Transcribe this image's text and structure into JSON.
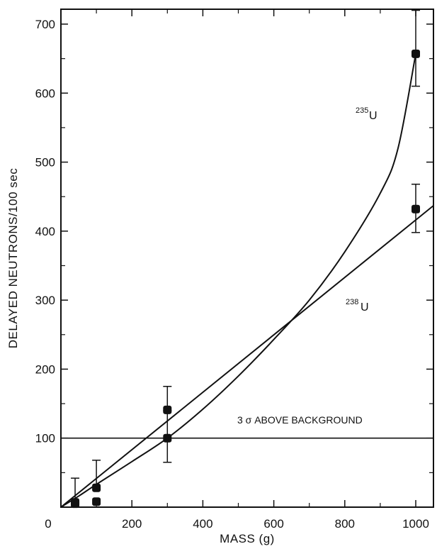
{
  "chart_data": {
    "type": "scatter",
    "xlabel": "MASS (g)",
    "ylabel": "DELAYED NEUTRONS/100 sec",
    "xlim": [
      0,
      1050
    ],
    "ylim": [
      0,
      720
    ],
    "x_ticks": [
      0,
      200,
      400,
      600,
      800,
      1000
    ],
    "y_ticks": [
      100,
      200,
      300,
      400,
      500,
      600,
      700
    ],
    "x_tick_labels": [
      "0",
      "200",
      "400",
      "600",
      "800",
      "1000"
    ],
    "y_tick_labels": [
      "100",
      "200",
      "300",
      "400",
      "500",
      "600",
      "700"
    ],
    "grid": false,
    "series": [
      {
        "name": "235U",
        "mass_number": "235",
        "element": "U",
        "points": [
          {
            "x": 40,
            "y": 5,
            "err_low": null,
            "err_high": null
          },
          {
            "x": 100,
            "y": 8,
            "err_low": null,
            "err_high": null
          },
          {
            "x": 300,
            "y": 100,
            "err_low": 65,
            "err_high": 140
          },
          {
            "x": 1000,
            "y": 657,
            "err_low": 610,
            "err_high": 720
          }
        ],
        "fit_curve": {
          "kind": "curve",
          "x": [
            0,
            50,
            100,
            200,
            300,
            400,
            500,
            600,
            700,
            800,
            900,
            950,
            1000
          ],
          "y": [
            0,
            16,
            33,
            66,
            100,
            142,
            190,
            243,
            300,
            370,
            455,
            520,
            657
          ]
        }
      },
      {
        "name": "238U",
        "mass_number": "238",
        "element": "U",
        "points": [
          {
            "x": 40,
            "y": 7,
            "err_low": null,
            "err_high": 42
          },
          {
            "x": 100,
            "y": 28,
            "err_low": null,
            "err_high": 68
          },
          {
            "x": 300,
            "y": 141,
            "err_low": null,
            "err_high": 175
          },
          {
            "x": 1000,
            "y": 432,
            "err_low": 398,
            "err_high": 468
          }
        ],
        "fit_curve": {
          "kind": "line",
          "x": [
            0,
            1050
          ],
          "y": [
            0,
            437
          ]
        }
      }
    ],
    "threshold": {
      "y": 100,
      "label": "3 σ ABOVE BACKGROUND"
    }
  }
}
